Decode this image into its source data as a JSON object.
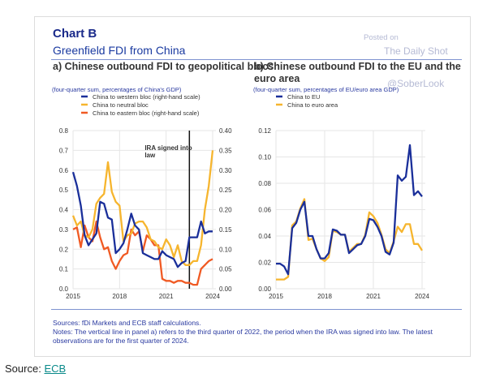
{
  "header": {
    "chart_label": "Chart B",
    "title": "Greenfield FDI from China"
  },
  "watermark": {
    "posted_on": "Posted on",
    "site": "The Daily Shot",
    "handle": "@SoberLook"
  },
  "notes": {
    "sources": "Sources: fDi Markets and ECB staff calculations.",
    "notes_line1": "Notes: The vertical line in panel a) refers to the third quarter of 2022, the period when the IRA was signed into law. The latest",
    "notes_line2": "observations are for the first quarter of 2024."
  },
  "footer": {
    "source_label": "Source:",
    "source_link": "ECB"
  },
  "colors": {
    "western": "#1a2f9a",
    "neutral": "#f6b52e",
    "eastern": "#f05a23",
    "eu": "#1a2f9a",
    "euro_area": "#f6b52e",
    "title": "#1a2a8a"
  },
  "chart_data": [
    {
      "type": "line",
      "title": "a) Chinese outbound FDI to geopolitical blocs",
      "ylabel": "(four-quarter sum, percentages of China's GDP)",
      "x_start": "2015Q1",
      "x_end": "2024Q1",
      "frequency": "quarterly",
      "xticks": [
        "2015",
        "2018",
        "2021",
        "2024"
      ],
      "ylim": [
        0,
        0.8
      ],
      "yticks": [
        "0.0",
        "0.1",
        "0.2",
        "0.3",
        "0.4",
        "0.5",
        "0.6",
        "0.7",
        "0.8"
      ],
      "ylim_right": [
        0,
        0.4
      ],
      "yticks_right": [
        "0.00",
        "0.05",
        "0.10",
        "0.15",
        "0.20",
        "0.25",
        "0.30",
        "0.35",
        "0.40"
      ],
      "grid": true,
      "legend": "top-left",
      "annotation": {
        "text_line1": "IRA signed into",
        "text_line2": "law",
        "x": "2022Q3"
      },
      "series": [
        {
          "name": "China to western bloc (right-hand scale)",
          "axis": "right",
          "color_key": "western",
          "values": [
            0.295,
            0.26,
            0.21,
            0.135,
            0.11,
            0.125,
            0.14,
            0.22,
            0.215,
            0.18,
            0.175,
            0.09,
            0.1,
            0.115,
            0.15,
            0.19,
            0.16,
            0.15,
            0.09,
            0.085,
            0.08,
            0.075,
            0.075,
            0.095,
            0.085,
            0.08,
            0.075,
            0.055,
            0.065,
            0.07,
            0.13,
            0.13,
            0.13,
            0.17,
            0.14,
            0.145,
            0.145
          ]
        },
        {
          "name": "China to neutral bloc",
          "axis": "left",
          "color_key": "neutral",
          "values": [
            0.37,
            0.32,
            0.34,
            0.27,
            0.26,
            0.3,
            0.43,
            0.46,
            0.48,
            0.64,
            0.49,
            0.44,
            0.42,
            0.24,
            0.27,
            0.28,
            0.33,
            0.34,
            0.34,
            0.31,
            0.25,
            0.24,
            0.21,
            0.2,
            0.25,
            0.22,
            0.16,
            0.22,
            0.14,
            0.12,
            0.12,
            0.14,
            0.14,
            0.22,
            0.4,
            0.52,
            0.7
          ]
        },
        {
          "name": "China to eastern bloc (right-hand scale)",
          "axis": "right",
          "color_key": "eastern",
          "values": [
            0.15,
            0.155,
            0.105,
            0.16,
            0.13,
            0.12,
            0.17,
            0.13,
            0.1,
            0.105,
            0.07,
            0.05,
            0.07,
            0.085,
            0.09,
            0.15,
            0.135,
            0.145,
            0.095,
            0.135,
            0.125,
            0.11,
            0.11,
            0.025,
            0.02,
            0.02,
            0.015,
            0.02,
            0.02,
            0.015,
            0.015,
            0.01,
            0.01,
            0.05,
            0.06,
            0.07,
            0.075
          ]
        }
      ]
    },
    {
      "type": "line",
      "title": "b) Chinese outbound FDI to the EU and the euro area",
      "ylabel": "(four-quarter sum, percentages of EU/euro area GDP)",
      "x_start": "2015Q1",
      "x_end": "2024Q1",
      "frequency": "quarterly",
      "xticks": [
        "2015",
        "2018",
        "2021",
        "2024"
      ],
      "ylim": [
        0,
        0.12
      ],
      "yticks": [
        "0.00",
        "0.02",
        "0.04",
        "0.06",
        "0.08",
        "0.10",
        "0.12"
      ],
      "grid": true,
      "legend": "top-left",
      "series": [
        {
          "name": "China to EU",
          "color_key": "eu",
          "values": [
            0.019,
            0.019,
            0.017,
            0.011,
            0.046,
            0.05,
            0.06,
            0.066,
            0.04,
            0.04,
            0.03,
            0.023,
            0.023,
            0.027,
            0.045,
            0.044,
            0.041,
            0.041,
            0.027,
            0.03,
            0.033,
            0.034,
            0.04,
            0.053,
            0.052,
            0.047,
            0.04,
            0.028,
            0.026,
            0.035,
            0.086,
            0.082,
            0.085,
            0.109,
            0.071,
            0.074,
            0.07
          ]
        },
        {
          "name": "China to euro area",
          "color_key": "euro_area",
          "values": [
            0.007,
            0.007,
            0.007,
            0.009,
            0.048,
            0.051,
            0.061,
            0.068,
            0.037,
            0.038,
            0.03,
            0.023,
            0.021,
            0.024,
            0.044,
            0.043,
            0.041,
            0.041,
            0.028,
            0.031,
            0.034,
            0.034,
            0.041,
            0.058,
            0.055,
            0.05,
            0.041,
            0.03,
            0.027,
            0.036,
            0.047,
            0.043,
            0.049,
            0.049,
            0.034,
            0.034,
            0.029
          ]
        }
      ]
    }
  ]
}
